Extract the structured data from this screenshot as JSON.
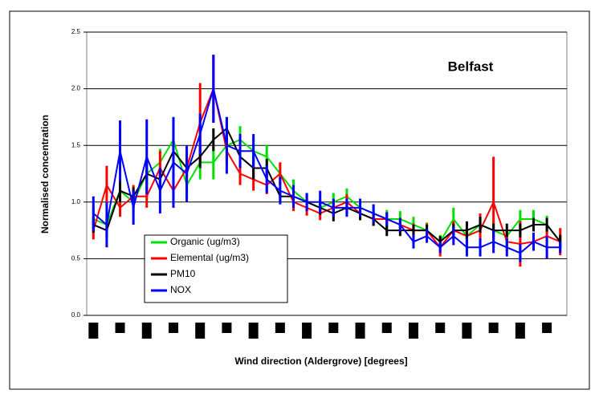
{
  "chart_data": {
    "type": "line",
    "title": "Belfast",
    "x_label": "Wind direction (Aldergrove) [degrees]",
    "y_label": "Normalised concentration",
    "categories": [
      null,
      null,
      null,
      null,
      null,
      null,
      null,
      null,
      null,
      null,
      null,
      null,
      null,
      null,
      null,
      null,
      null,
      null,
      null,
      null,
      null,
      null,
      null,
      null,
      null,
      null,
      null,
      null,
      null,
      null,
      null,
      null,
      null,
      null,
      null,
      null
    ],
    "ylim": [
      0,
      2.5
    ],
    "yticks": [
      {
        "value": 0,
        "label": "0.0"
      },
      {
        "value": 0.5,
        "label": "0.5"
      },
      {
        "value": 1,
        "label": "1.0"
      },
      {
        "value": 1.5,
        "label": "1.5"
      },
      {
        "value": 2,
        "label": "2.0"
      },
      {
        "value": 2.5,
        "label": "2.5"
      }
    ],
    "grid": true,
    "legend": "lower-left",
    "series": [
      {
        "name": "Organic  (ug/m3)",
        "color": "#00e000",
        "values": [
          0.85,
          0.8,
          1.1,
          1.0,
          1.25,
          1.35,
          1.55,
          1.15,
          1.35,
          1.35,
          1.5,
          1.55,
          1.45,
          1.4,
          1.25,
          1.1,
          1.0,
          0.95,
          1.0,
          1.05,
          0.95,
          0.9,
          0.85,
          0.85,
          0.8,
          0.75,
          0.65,
          0.85,
          0.7,
          0.8,
          0.75,
          0.7,
          0.85,
          0.85,
          0.8,
          0.65
        ],
        "errors": [
          0.1,
          0.1,
          0.15,
          0.1,
          0.15,
          0.12,
          0.2,
          0.12,
          0.15,
          0.15,
          0.12,
          0.12,
          0.12,
          0.1,
          0.1,
          0.1,
          0.08,
          0.08,
          0.08,
          0.07,
          0.08,
          0.08,
          0.08,
          0.07,
          0.07,
          0.07,
          0.06,
          0.1,
          0.08,
          0.08,
          0.08,
          0.08,
          0.08,
          0.08,
          0.08,
          0.06
        ]
      },
      {
        "name": "Elemental (ug/m3)",
        "color": "#ff0000",
        "values": [
          0.75,
          1.15,
          0.95,
          1.05,
          1.05,
          1.3,
          1.1,
          1.3,
          1.7,
          2.0,
          1.45,
          1.25,
          1.2,
          1.15,
          1.25,
          1.0,
          0.95,
          0.9,
          0.95,
          1.0,
          0.9,
          0.85,
          0.85,
          0.8,
          0.75,
          0.75,
          0.6,
          0.75,
          0.7,
          0.75,
          1.0,
          0.65,
          0.63,
          0.65,
          0.7,
          0.65
        ],
        "errors": [
          0.08,
          0.17,
          0.08,
          0.1,
          0.1,
          0.15,
          0.15,
          0.15,
          0.35,
          0.3,
          0.1,
          0.1,
          0.1,
          0.08,
          0.1,
          0.08,
          0.07,
          0.06,
          0.07,
          0.07,
          0.06,
          0.06,
          0.06,
          0.06,
          0.06,
          0.06,
          0.08,
          0.08,
          0.08,
          0.15,
          0.4,
          0.08,
          0.2,
          0.08,
          0.1,
          0.12
        ]
      },
      {
        "name": "PM10",
        "color": "#000000",
        "values": [
          0.8,
          0.75,
          1.1,
          1.05,
          1.25,
          1.2,
          1.45,
          1.3,
          1.4,
          1.55,
          1.65,
          1.4,
          1.3,
          1.3,
          1.05,
          1.05,
          1.0,
          0.95,
          0.9,
          0.95,
          0.9,
          0.85,
          0.75,
          0.75,
          0.75,
          0.75,
          0.65,
          0.75,
          0.75,
          0.8,
          0.75,
          0.75,
          0.75,
          0.8,
          0.8,
          0.65
        ],
        "errors": [
          0.07,
          0.06,
          0.1,
          0.08,
          0.1,
          0.1,
          0.15,
          0.08,
          0.1,
          0.1,
          0.1,
          0.08,
          0.1,
          0.08,
          0.05,
          0.08,
          0.07,
          0.06,
          0.07,
          0.06,
          0.06,
          0.06,
          0.05,
          0.05,
          0.05,
          0.05,
          0.05,
          0.06,
          0.08,
          0.07,
          0.06,
          0.06,
          0.06,
          0.06,
          0.06,
          0.06
        ]
      },
      {
        "name": "NOX",
        "color": "#0000ff",
        "values": [
          0.9,
          0.8,
          1.45,
          0.95,
          1.4,
          1.1,
          1.35,
          1.25,
          1.6,
          2.0,
          1.5,
          1.45,
          1.45,
          1.2,
          1.1,
          1.05,
          1.0,
          1.0,
          0.95,
          0.95,
          0.95,
          0.9,
          0.85,
          0.8,
          0.65,
          0.7,
          0.6,
          0.7,
          0.6,
          0.6,
          0.65,
          0.6,
          0.55,
          0.65,
          0.6,
          0.6
        ],
        "errors": [
          0.15,
          0.2,
          0.27,
          0.15,
          0.33,
          0.2,
          0.4,
          0.25,
          0.18,
          0.3,
          0.25,
          0.15,
          0.15,
          0.12,
          0.12,
          0.1,
          0.08,
          0.1,
          0.08,
          0.08,
          0.08,
          0.08,
          0.06,
          0.06,
          0.06,
          0.06,
          0.05,
          0.08,
          0.08,
          0.08,
          0.1,
          0.08,
          0.08,
          0.08,
          0.1,
          0.05
        ]
      }
    ]
  }
}
